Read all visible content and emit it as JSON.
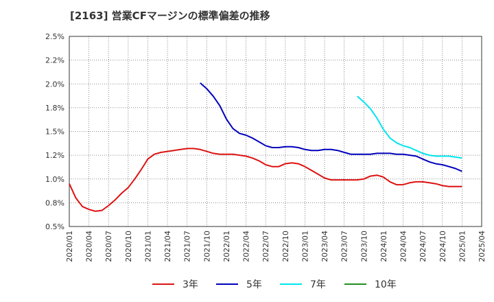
{
  "chart_data": {
    "type": "line",
    "title": "[2163]  営業CFマージンの標準偏差の推移",
    "xlabel": "",
    "ylabel": "",
    "ylim": [
      0.5,
      2.5
    ],
    "y_ticks": [
      0.5,
      0.75,
      1.0,
      1.25,
      1.5,
      1.75,
      2.0,
      2.25,
      2.5
    ],
    "y_tick_labels": [
      "0.5%",
      "0.8%",
      "1.0%",
      "1.2%",
      "1.5%",
      "1.8%",
      "2.0%",
      "2.2%",
      "2.5%"
    ],
    "x_tick_labels": [
      "2020/01",
      "2020/04",
      "2020/07",
      "2020/10",
      "2021/01",
      "2021/04",
      "2021/07",
      "2021/10",
      "2022/01",
      "2022/04",
      "2022/07",
      "2022/10",
      "2023/01",
      "2023/04",
      "2023/07",
      "2023/10",
      "2024/01",
      "2024/04",
      "2024/07",
      "2024/10",
      "2025/01",
      "2025/04"
    ],
    "grid": true,
    "legend_position": "bottom",
    "series": [
      {
        "name": "3年",
        "color": "#dd1111",
        "start": "2020/01",
        "values": [
          0.95,
          0.8,
          0.71,
          0.68,
          0.66,
          0.67,
          0.72,
          0.78,
          0.85,
          0.91,
          1.0,
          1.1,
          1.21,
          1.26,
          1.28,
          1.29,
          1.3,
          1.31,
          1.32,
          1.32,
          1.31,
          1.29,
          1.27,
          1.26,
          1.26,
          1.26,
          1.25,
          1.24,
          1.22,
          1.19,
          1.15,
          1.13,
          1.13,
          1.16,
          1.17,
          1.16,
          1.13,
          1.09,
          1.05,
          1.01,
          0.99,
          0.99,
          0.99,
          0.99,
          0.99,
          1.0,
          1.03,
          1.04,
          1.02,
          0.97,
          0.94,
          0.94,
          0.96,
          0.97,
          0.97,
          0.96,
          0.95,
          0.93,
          0.92,
          0.92,
          0.92
        ]
      },
      {
        "name": "5年",
        "color": "#0000bb",
        "start": "2021/09",
        "values": [
          2.01,
          1.95,
          1.87,
          1.77,
          1.63,
          1.53,
          1.48,
          1.46,
          1.43,
          1.39,
          1.35,
          1.33,
          1.33,
          1.34,
          1.34,
          1.33,
          1.31,
          1.3,
          1.3,
          1.31,
          1.31,
          1.3,
          1.28,
          1.26,
          1.26,
          1.26,
          1.26,
          1.27,
          1.27,
          1.27,
          1.26,
          1.26,
          1.25,
          1.24,
          1.21,
          1.18,
          1.16,
          1.15,
          1.13,
          1.11,
          1.08
        ]
      },
      {
        "name": "7年",
        "color": "#00e5ee",
        "start": "2023/09",
        "values": [
          1.87,
          1.81,
          1.74,
          1.64,
          1.52,
          1.43,
          1.38,
          1.35,
          1.33,
          1.3,
          1.27,
          1.25,
          1.24,
          1.24,
          1.24,
          1.23,
          1.22
        ]
      },
      {
        "name": "10年",
        "color": "#228b22",
        "start": "",
        "values": []
      }
    ]
  }
}
